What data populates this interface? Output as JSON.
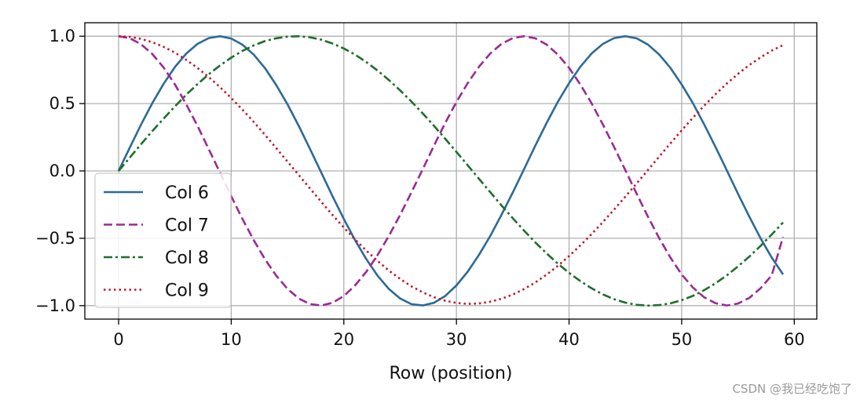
{
  "chart_data": {
    "type": "line",
    "xlabel": "Row (position)",
    "ylabel": "",
    "title": "",
    "xlim": [
      -3,
      62
    ],
    "ylim": [
      -1.1,
      1.1
    ],
    "xticks": [
      0,
      10,
      20,
      30,
      40,
      50,
      60
    ],
    "xtick_labels": [
      "0",
      "10",
      "20",
      "30",
      "40",
      "50",
      "60"
    ],
    "yticks": [
      -1.0,
      -0.5,
      0.0,
      0.5,
      1.0
    ],
    "ytick_labels": [
      "−1.0",
      "−0.5",
      "0.0",
      "0.5",
      "1.0"
    ],
    "grid": true,
    "legend_position": "center-left",
    "x": [
      0,
      1,
      2,
      3,
      4,
      5,
      6,
      7,
      8,
      9,
      10,
      11,
      12,
      13,
      14,
      15,
      16,
      17,
      18,
      19,
      20,
      21,
      22,
      23,
      24,
      25,
      26,
      27,
      28,
      29,
      30,
      31,
      32,
      33,
      34,
      35,
      36,
      37,
      38,
      39,
      40,
      41,
      42,
      43,
      44,
      45,
      46,
      47,
      48,
      49,
      50,
      51,
      52,
      53,
      54,
      55,
      56,
      57,
      58,
      59
    ],
    "series": [
      {
        "name": "Col 6",
        "color": "#2d6a96",
        "dash": "solid",
        "values": [
          0.0,
          0.175,
          0.345,
          0.504,
          0.647,
          0.771,
          0.87,
          0.943,
          0.986,
          1.0,
          0.983,
          0.937,
          0.863,
          0.763,
          0.637,
          0.494,
          0.334,
          0.162,
          -0.013,
          -0.188,
          -0.357,
          -0.514,
          -0.656,
          -0.778,
          -0.876,
          -0.947,
          -0.989,
          -0.999,
          -0.979,
          -0.929,
          -0.85,
          -0.748,
          -0.624,
          -0.483,
          -0.326,
          -0.16,
          0.012,
          0.187,
          0.355,
          0.512,
          0.652,
          0.773,
          0.871,
          0.943,
          0.986,
          1.0,
          0.984,
          0.938,
          0.864,
          0.765,
          0.642,
          0.502,
          0.345,
          0.178,
          0.005,
          -0.169,
          -0.339,
          -0.499,
          -0.643,
          -0.768
        ]
      },
      {
        "name": "Col 7",
        "color": "#9b2a96",
        "dash": "dashed",
        "values": [
          1.0,
          0.985,
          0.94,
          0.867,
          0.767,
          0.642,
          0.496,
          0.335,
          0.163,
          -0.013,
          -0.188,
          -0.357,
          -0.514,
          -0.656,
          -0.778,
          -0.876,
          -0.947,
          -0.989,
          -0.999,
          -0.979,
          -0.929,
          -0.85,
          -0.748,
          -0.624,
          -0.483,
          -0.326,
          -0.16,
          0.012,
          0.187,
          0.355,
          0.512,
          0.652,
          0.773,
          0.871,
          0.943,
          0.986,
          1.0,
          0.984,
          0.938,
          0.864,
          0.765,
          0.642,
          0.502,
          0.345,
          0.178,
          0.005,
          -0.169,
          -0.339,
          -0.499,
          -0.643,
          -0.768,
          -0.866,
          -0.938,
          -0.982,
          -0.999,
          -0.985,
          -0.943,
          -0.872,
          -0.775,
          -0.49
        ]
      },
      {
        "name": "Col 8",
        "color": "#1f6e2a",
        "dash": "dashdot",
        "values": [
          0.0,
          0.1,
          0.199,
          0.296,
          0.389,
          0.479,
          0.565,
          0.644,
          0.717,
          0.783,
          0.841,
          0.891,
          0.932,
          0.964,
          0.985,
          0.997,
          1.0,
          0.992,
          0.974,
          0.946,
          0.909,
          0.863,
          0.808,
          0.745,
          0.675,
          0.598,
          0.515,
          0.427,
          0.335,
          0.239,
          0.141,
          0.042,
          -0.058,
          -0.158,
          -0.256,
          -0.351,
          -0.443,
          -0.53,
          -0.612,
          -0.688,
          -0.757,
          -0.818,
          -0.871,
          -0.916,
          -0.952,
          -0.978,
          -0.994,
          -1.0,
          -0.996,
          -0.983,
          -0.96,
          -0.927,
          -0.885,
          -0.834,
          -0.776,
          -0.709,
          -0.636,
          -0.557,
          -0.472,
          -0.383
        ]
      },
      {
        "name": "Col 9",
        "color": "#c0182c",
        "dash": "dotted",
        "values": [
          1.0,
          0.995,
          0.98,
          0.955,
          0.921,
          0.878,
          0.825,
          0.765,
          0.697,
          0.622,
          0.541,
          0.455,
          0.363,
          0.268,
          0.169,
          0.069,
          -0.031,
          -0.131,
          -0.23,
          -0.327,
          -0.42,
          -0.509,
          -0.592,
          -0.669,
          -0.739,
          -0.802,
          -0.856,
          -0.901,
          -0.937,
          -0.963,
          -0.98,
          -0.987,
          -0.984,
          -0.971,
          -0.949,
          -0.918,
          -0.877,
          -0.828,
          -0.77,
          -0.705,
          -0.632,
          -0.553,
          -0.469,
          -0.38,
          -0.287,
          -0.191,
          -0.093,
          0.006,
          0.106,
          0.204,
          0.301,
          0.395,
          0.484,
          0.569,
          0.648,
          0.72,
          0.786,
          0.843,
          0.893,
          0.934
        ]
      }
    ]
  },
  "watermark": "CSDN @我已经吃饱了"
}
